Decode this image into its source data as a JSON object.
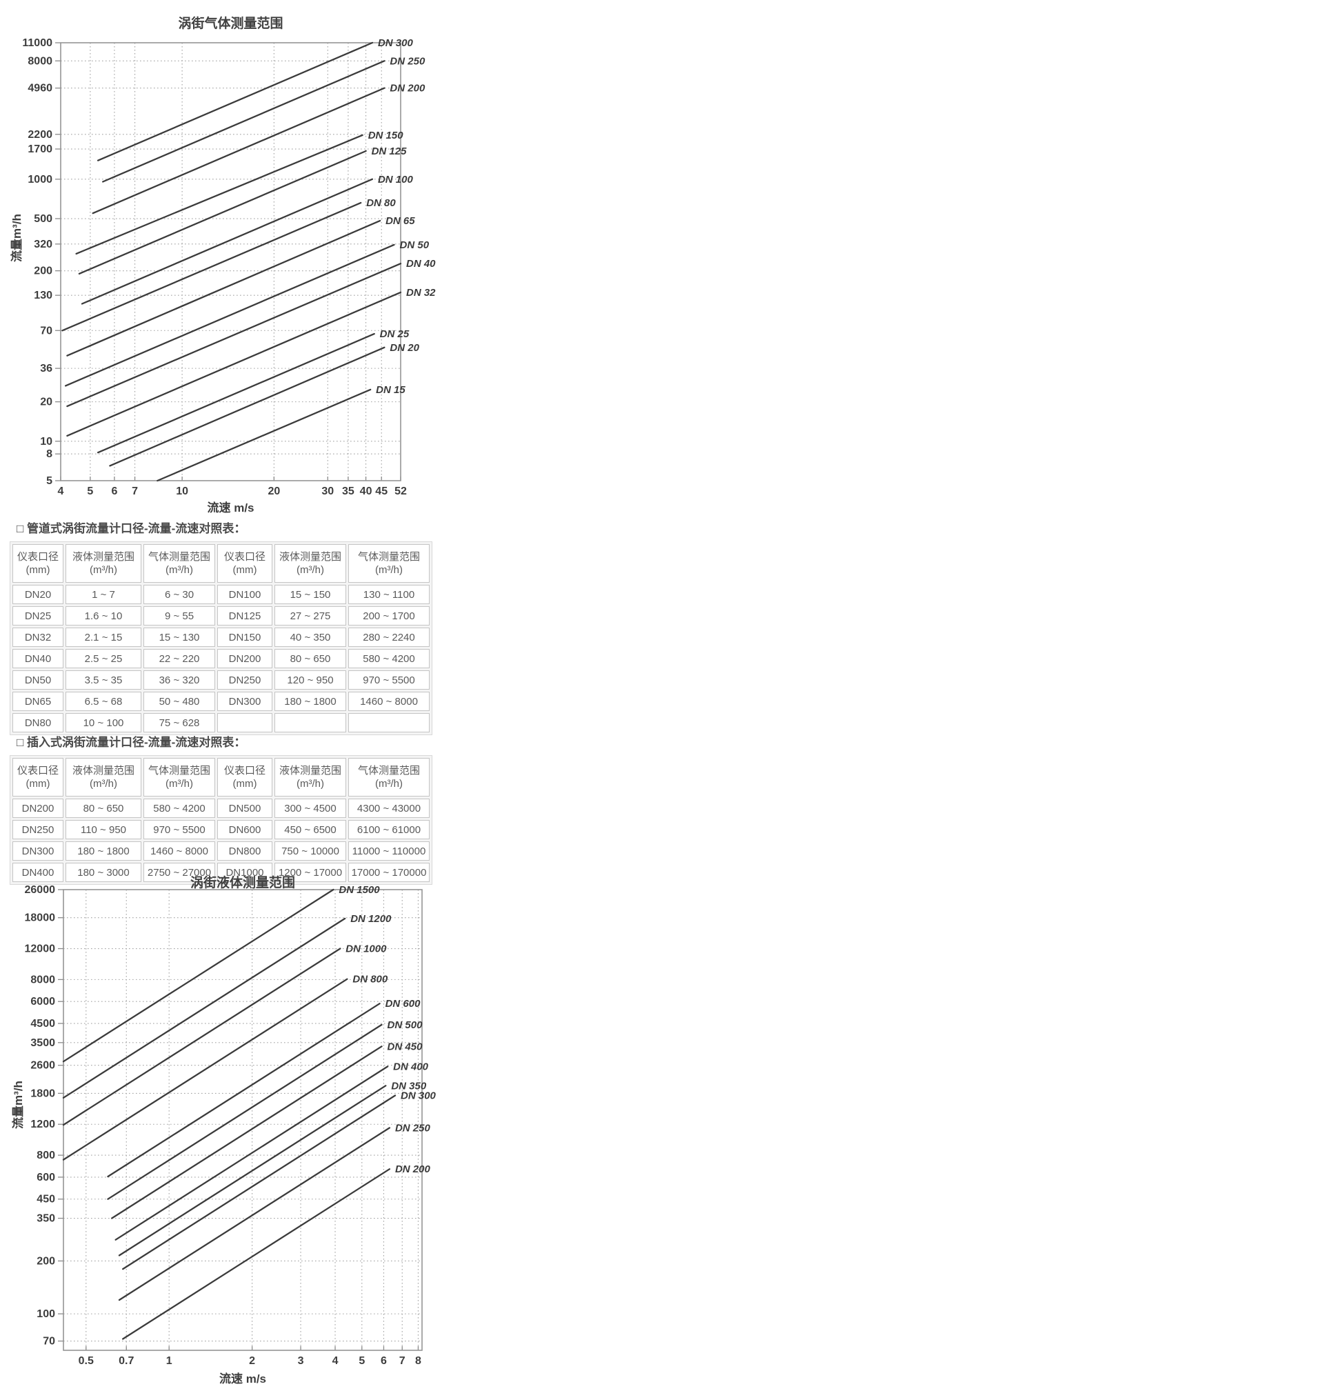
{
  "colors": {
    "background": "#ffffff",
    "data_line": "#3b3b3b",
    "grid_line": "#a3a3a3",
    "plot_border": "#949494",
    "tick_text": "#3d3d3d",
    "title_text": "#404040",
    "table_border": "#c4c4c4",
    "table_text": "#5a5a5a"
  },
  "chart_data": [
    {
      "type": "line",
      "title": "涡街气体测量范围",
      "xlabel": "流速 m/s",
      "ylabel": "流量m³/h",
      "x_scale": "log",
      "y_scale": "log",
      "grid": true,
      "legend_position": "line-end-labels",
      "x_range": [
        4,
        52
      ],
      "y_range": [
        5,
        11000
      ],
      "x_ticks": [
        4,
        5,
        6,
        7,
        10,
        20,
        30,
        35,
        40,
        45,
        52
      ],
      "y_ticks": [
        11000,
        8000,
        4960,
        2200,
        1700,
        1000,
        500,
        320,
        200,
        130,
        70,
        36,
        20,
        10,
        8,
        5
      ],
      "series": [
        {
          "name": "DN 300",
          "points": [
            [
              5.3,
              1390
            ],
            [
              42,
              11000
            ]
          ]
        },
        {
          "name": "DN 250",
          "points": [
            [
              5.5,
              957
            ],
            [
              46,
              8000
            ]
          ]
        },
        {
          "name": "DN 200",
          "points": [
            [
              5.1,
              550
            ],
            [
              46,
              4960
            ]
          ]
        },
        {
          "name": "DN 150",
          "points": [
            [
              4.5,
              270
            ],
            [
              39,
              2170
            ]
          ]
        },
        {
          "name": "DN 125",
          "points": [
            [
              4.6,
              190
            ],
            [
              40,
              1640
            ]
          ]
        },
        {
          "name": "DN 100",
          "points": [
            [
              4.7,
              112
            ],
            [
              42,
              1000
            ]
          ]
        },
        {
          "name": "DN 80",
          "points": [
            [
              4.05,
              70
            ],
            [
              38.5,
              660
            ]
          ]
        },
        {
          "name": "DN 65",
          "points": [
            [
              4.2,
              45
            ],
            [
              44.5,
              482
            ]
          ]
        },
        {
          "name": "DN 50",
          "points": [
            [
              4.15,
              26.5
            ],
            [
              49.5,
              316
            ]
          ]
        },
        {
          "name": "DN 40",
          "points": [
            [
              4.2,
              18.5
            ],
            [
              52,
              227
            ]
          ]
        },
        {
          "name": "DN 32",
          "points": [
            [
              4.2,
              11
            ],
            [
              52,
              137
            ]
          ]
        },
        {
          "name": "DN 25",
          "points": [
            [
              5.3,
              8.2
            ],
            [
              42.6,
              66
            ]
          ]
        },
        {
          "name": "DN 20",
          "points": [
            [
              5.8,
              6.5
            ],
            [
              46,
              52
            ]
          ]
        },
        {
          "name": "DN 15",
          "points": [
            [
              8.3,
              5
            ],
            [
              41.4,
              24.8
            ]
          ]
        }
      ]
    },
    {
      "type": "line",
      "title": "涡街液体测量范围",
      "xlabel": "流速 m/s",
      "ylabel": "流量m³/h",
      "x_scale": "log",
      "y_scale": "log",
      "grid": true,
      "legend_position": "line-end-labels",
      "x_range": [
        0.414,
        8.26
      ],
      "y_range": [
        62,
        26000
      ],
      "x_ticks": [
        0.5,
        0.7,
        1,
        2,
        3,
        4,
        5,
        6,
        7,
        8
      ],
      "y_ticks": [
        26000,
        18000,
        12000,
        8000,
        6000,
        4500,
        3500,
        2600,
        1800,
        1200,
        800,
        600,
        450,
        350,
        200,
        100,
        70
      ],
      "series": [
        {
          "name": "DN 1500",
          "points": [
            [
              0.414,
              2732
            ],
            [
              3.94,
              26000
            ]
          ]
        },
        {
          "name": "DN 1200",
          "points": [
            [
              0.414,
              1698
            ],
            [
              4.34,
              17800
            ]
          ]
        },
        {
          "name": "DN 1000",
          "points": [
            [
              0.414,
              1191
            ],
            [
              4.17,
              12000
            ]
          ]
        },
        {
          "name": "DN 800",
          "points": [
            [
              0.414,
              754
            ],
            [
              4.42,
              8050
            ]
          ]
        },
        {
          "name": "DN 600",
          "points": [
            [
              0.6,
              605
            ],
            [
              5.8,
              5840
            ]
          ]
        },
        {
          "name": "DN 500",
          "points": [
            [
              0.6,
              450
            ],
            [
              5.9,
              4425
            ]
          ]
        },
        {
          "name": "DN 450",
          "points": [
            [
              0.62,
              350
            ],
            [
              5.9,
              3330
            ]
          ]
        },
        {
          "name": "DN 400",
          "points": [
            [
              0.64,
              264
            ],
            [
              6.2,
              2560
            ]
          ]
        },
        {
          "name": "DN 350",
          "points": [
            [
              0.66,
              215
            ],
            [
              6.1,
              1990
            ]
          ]
        },
        {
          "name": "DN 300",
          "points": [
            [
              0.68,
              180
            ],
            [
              6.6,
              1750
            ]
          ]
        },
        {
          "name": "DN 250",
          "points": [
            [
              0.66,
              120
            ],
            [
              6.3,
              1145
            ]
          ]
        },
        {
          "name": "DN 200",
          "points": [
            [
              0.68,
              72
            ],
            [
              6.3,
              667
            ]
          ]
        }
      ]
    }
  ],
  "tables": [
    {
      "title": "□ 管道式涡街流量计口径-流量-流速对照表：",
      "columns": [
        {
          "label": "仪表口径",
          "unit": "(mm)"
        },
        {
          "label": "液体测量范围",
          "unit": "(m³/h)"
        },
        {
          "label": "气体测量范围",
          "unit": "(m³/h)"
        },
        {
          "label": "仪表口径",
          "unit": "(mm)"
        },
        {
          "label": "液体测量范围",
          "unit": "(m³/h)"
        },
        {
          "label": "气体测量范围",
          "unit": "(m³/h)"
        }
      ],
      "rows": [
        [
          "DN20",
          "1 ~ 7",
          "6 ~ 30",
          "DN100",
          "15 ~ 150",
          "130 ~ 1100"
        ],
        [
          "DN25",
          "1.6 ~ 10",
          "9 ~ 55",
          "DN125",
          "27 ~ 275",
          "200 ~ 1700"
        ],
        [
          "DN32",
          "2.1 ~ 15",
          "15 ~ 130",
          "DN150",
          "40 ~ 350",
          "280 ~ 2240"
        ],
        [
          "DN40",
          "2.5 ~ 25",
          "22 ~ 220",
          "DN200",
          "80 ~ 650",
          "580 ~ 4200"
        ],
        [
          "DN50",
          "3.5 ~ 35",
          "36 ~ 320",
          "DN250",
          "120 ~ 950",
          "970 ~ 5500"
        ],
        [
          "DN65",
          "6.5 ~ 68",
          "50 ~ 480",
          "DN300",
          "180 ~ 1800",
          "1460 ~ 8000"
        ],
        [
          "DN80",
          "10 ~ 100",
          "75 ~ 628",
          "",
          "",
          ""
        ]
      ]
    },
    {
      "title": "□ 插入式涡街流量计口径-流量-流速对照表：",
      "columns": [
        {
          "label": "仪表口径",
          "unit": "(mm)"
        },
        {
          "label": "液体测量范围",
          "unit": "(m³/h)"
        },
        {
          "label": "气体测量范围",
          "unit": "(m³/h)"
        },
        {
          "label": "仪表口径",
          "unit": "(mm)"
        },
        {
          "label": "液体测量范围",
          "unit": "(m³/h)"
        },
        {
          "label": "气体测量范围",
          "unit": "(m³/h)"
        }
      ],
      "rows": [
        [
          "DN200",
          "80 ~ 650",
          "580 ~ 4200",
          "DN500",
          "300 ~ 4500",
          "4300 ~ 43000"
        ],
        [
          "DN250",
          "110 ~ 950",
          "970 ~ 5500",
          "DN600",
          "450 ~ 6500",
          "6100 ~ 61000"
        ],
        [
          "DN300",
          "180 ~ 1800",
          "1460 ~ 8000",
          "DN800",
          "750 ~ 10000",
          "11000 ~ 110000"
        ],
        [
          "DN400",
          "180 ~ 3000",
          "2750 ~ 27000",
          "DN1000",
          "1200 ~ 17000",
          "17000 ~ 170000"
        ]
      ]
    }
  ]
}
